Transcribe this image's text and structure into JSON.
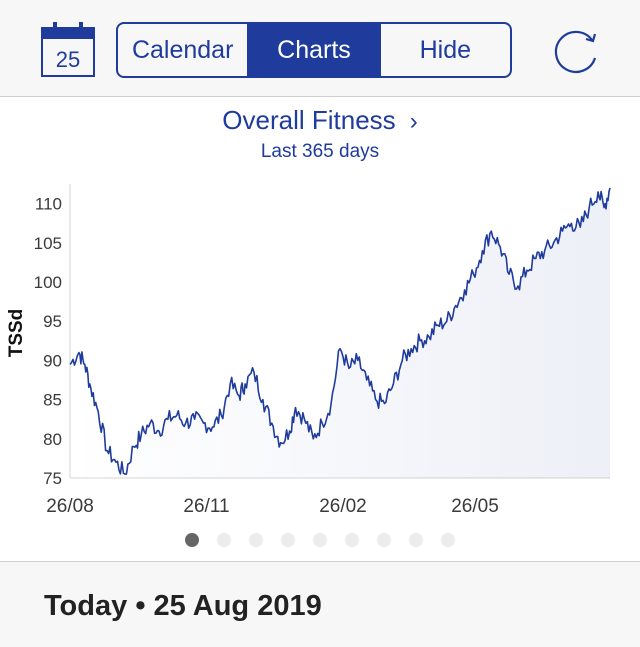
{
  "toolbar": {
    "calendar_day": "25",
    "segments": [
      {
        "label": "Calendar",
        "active": false
      },
      {
        "label": "Charts",
        "active": true
      },
      {
        "label": "Hide",
        "active": false
      }
    ],
    "accent_color": "#1f3c9c"
  },
  "chart_panel": {
    "title": "Overall Fitness",
    "title_chevron": "›",
    "subtitle": "Last 365 days",
    "page_count": 9,
    "active_page": 1
  },
  "footer": {
    "today_label": "Today",
    "separator": "•",
    "date": "25 Aug 2019"
  },
  "chart_data": {
    "type": "area",
    "title": "Overall Fitness",
    "subtitle": "Last 365 days",
    "ylabel": "TSSd",
    "xlabel": "",
    "ylim": [
      75,
      112
    ],
    "yticks": [
      75,
      80,
      85,
      90,
      95,
      100,
      105,
      110
    ],
    "xticks": [
      "26/08",
      "26/11",
      "26/02",
      "26/05"
    ],
    "grid": false,
    "line_color": "#1f3c9c",
    "series": [
      {
        "points": [
          [
            "2018-08-26",
            89.5
          ],
          [
            "2018-09-01",
            91.0
          ],
          [
            "2018-09-05",
            89.5
          ],
          [
            "2018-09-09",
            86.5
          ],
          [
            "2018-09-14",
            83.5
          ],
          [
            "2018-09-20",
            78.5
          ],
          [
            "2018-09-26",
            77.0
          ],
          [
            "2018-10-02",
            75.5
          ],
          [
            "2018-10-08",
            79.0
          ],
          [
            "2018-10-13",
            80.5
          ],
          [
            "2018-10-19",
            82.0
          ],
          [
            "2018-10-25",
            81.0
          ],
          [
            "2018-10-31",
            82.5
          ],
          [
            "2018-11-06",
            83.0
          ],
          [
            "2018-11-12",
            82.0
          ],
          [
            "2018-11-18",
            82.5
          ],
          [
            "2018-11-24",
            82.0
          ],
          [
            "2018-11-30",
            81.5
          ],
          [
            "2018-12-06",
            83.0
          ],
          [
            "2018-12-12",
            87.0
          ],
          [
            "2018-12-18",
            85.5
          ],
          [
            "2018-12-22",
            87.0
          ],
          [
            "2018-12-28",
            88.5
          ],
          [
            "2019-01-03",
            85.0
          ],
          [
            "2019-01-09",
            82.0
          ],
          [
            "2019-01-15",
            79.5
          ],
          [
            "2019-01-21",
            81.0
          ],
          [
            "2019-01-25",
            84.0
          ],
          [
            "2019-01-31",
            82.5
          ],
          [
            "2019-02-06",
            80.0
          ],
          [
            "2019-02-12",
            82.0
          ],
          [
            "2019-02-18",
            84.5
          ],
          [
            "2019-02-24",
            91.5
          ],
          [
            "2019-03-02",
            89.0
          ],
          [
            "2019-03-08",
            90.0
          ],
          [
            "2019-03-14",
            87.5
          ],
          [
            "2019-03-20",
            85.0
          ],
          [
            "2019-03-26",
            84.5
          ],
          [
            "2019-04-01",
            87.0
          ],
          [
            "2019-04-07",
            90.0
          ],
          [
            "2019-04-13",
            91.5
          ],
          [
            "2019-04-19",
            92.5
          ],
          [
            "2019-04-25",
            93.0
          ],
          [
            "2019-05-01",
            94.5
          ],
          [
            "2019-05-07",
            95.0
          ],
          [
            "2019-05-13",
            97.0
          ],
          [
            "2019-05-19",
            99.0
          ],
          [
            "2019-05-25",
            101.0
          ],
          [
            "2019-05-31",
            104.0
          ],
          [
            "2019-06-06",
            106.5
          ],
          [
            "2019-06-12",
            104.5
          ],
          [
            "2019-06-18",
            101.0
          ],
          [
            "2019-06-24",
            99.5
          ],
          [
            "2019-06-30",
            101.5
          ],
          [
            "2019-07-06",
            103.0
          ],
          [
            "2019-07-12",
            104.0
          ],
          [
            "2019-07-18",
            105.0
          ],
          [
            "2019-07-24",
            106.5
          ],
          [
            "2019-07-30",
            107.5
          ],
          [
            "2019-08-05",
            107.0
          ],
          [
            "2019-08-11",
            109.5
          ],
          [
            "2019-08-17",
            111.5
          ],
          [
            "2019-08-21",
            109.5
          ],
          [
            "2019-08-25",
            112.0
          ]
        ]
      }
    ]
  }
}
